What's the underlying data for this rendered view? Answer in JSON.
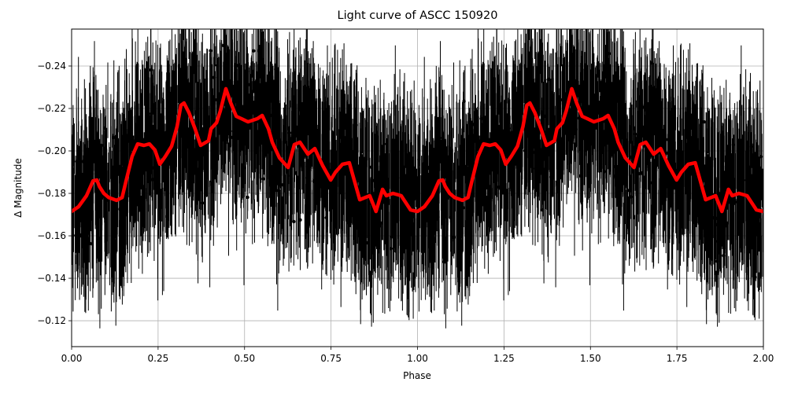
{
  "chart_data": {
    "type": "line",
    "title": "Light curve of ASCC 150920",
    "xlabel": "Phase",
    "ylabel": "Δ Magnitude",
    "xlim": [
      0.0,
      2.0
    ],
    "ylim": [
      -0.1078,
      -0.2574
    ],
    "y_inverted": true,
    "grid": true,
    "legend": null,
    "x_ticks": [
      "0.00",
      "0.25",
      "0.50",
      "0.75",
      "1.00",
      "1.25",
      "1.50",
      "1.75",
      "2.00"
    ],
    "x_tick_values": [
      0.0,
      0.25,
      0.5,
      0.75,
      1.0,
      1.25,
      1.5,
      1.75,
      2.0
    ],
    "y_ticks": [
      "−0.12",
      "−0.14",
      "−0.16",
      "−0.18",
      "−0.20",
      "−0.22",
      "−0.24"
    ],
    "y_tick_values": [
      -0.12,
      -0.14,
      -0.16,
      -0.18,
      -0.2,
      -0.22,
      -0.24
    ],
    "series": [
      {
        "name": "observations",
        "style": "black points with error bars",
        "color": "#000000",
        "description": "Dense scatter of photometric measurements with vertical error bars, spanning roughly -0.11 to -0.26 across all phases"
      },
      {
        "name": "binned mean",
        "style": "thick red line",
        "color": "#ff0000",
        "x": [
          0.0,
          0.02,
          0.043,
          0.062,
          0.073,
          0.08,
          0.093,
          0.107,
          0.13,
          0.146,
          0.157,
          0.175,
          0.191,
          0.209,
          0.225,
          0.241,
          0.255,
          0.271,
          0.289,
          0.305,
          0.316,
          0.325,
          0.339,
          0.357,
          0.373,
          0.396,
          0.403,
          0.419,
          0.43,
          0.446,
          0.46,
          0.476,
          0.491,
          0.51,
          0.537,
          0.551,
          0.569,
          0.58,
          0.601,
          0.626,
          0.644,
          0.66,
          0.683,
          0.703,
          0.726,
          0.749,
          0.763,
          0.783,
          0.803,
          0.833,
          0.862,
          0.88,
          0.899,
          0.91,
          0.929,
          0.953,
          0.98,
          0.999,
          1.0
        ],
        "y": [
          -0.1715,
          -0.1737,
          -0.1789,
          -0.1859,
          -0.1863,
          -0.1833,
          -0.18,
          -0.1781,
          -0.1767,
          -0.1781,
          -0.1856,
          -0.1974,
          -0.2033,
          -0.2026,
          -0.2033,
          -0.2004,
          -0.1937,
          -0.1974,
          -0.2022,
          -0.2115,
          -0.2215,
          -0.2226,
          -0.2181,
          -0.2104,
          -0.2026,
          -0.2048,
          -0.2104,
          -0.2133,
          -0.2189,
          -0.2293,
          -0.2226,
          -0.2163,
          -0.2152,
          -0.2137,
          -0.2152,
          -0.2167,
          -0.2104,
          -0.2041,
          -0.1967,
          -0.1922,
          -0.203,
          -0.2041,
          -0.1985,
          -0.2011,
          -0.193,
          -0.1863,
          -0.19,
          -0.1937,
          -0.1944,
          -0.177,
          -0.1789,
          -0.1715,
          -0.1819,
          -0.1789,
          -0.18,
          -0.1789,
          -0.1722,
          -0.1715,
          -0.1715
        ],
        "period_repeat": "curve repeats identically from phase 1.0 to 2.0"
      }
    ]
  }
}
